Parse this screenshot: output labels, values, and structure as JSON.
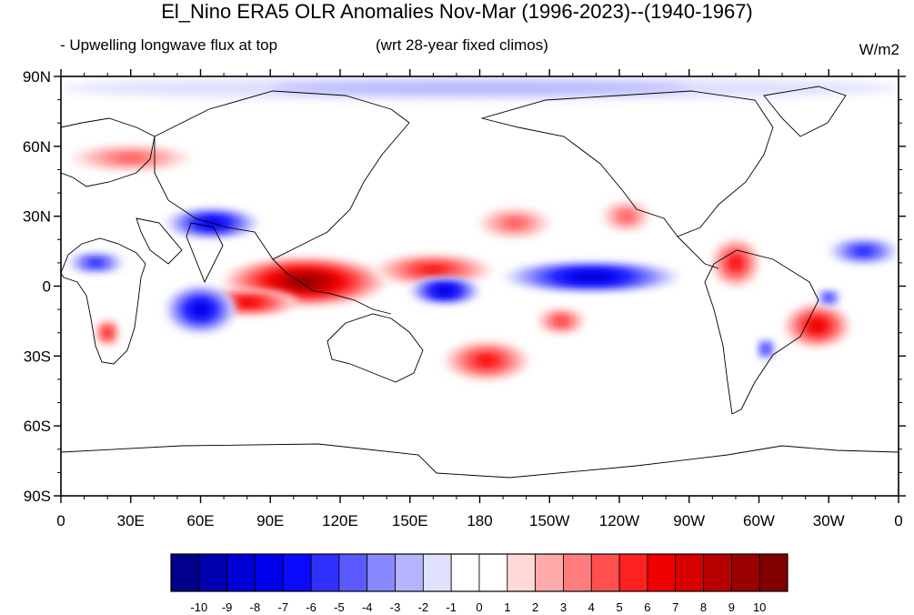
{
  "title": "El_Nino ERA5 OLR Anomalies Nov-Mar (1996-2023)--(1940-1967)",
  "subtitle_left": "- Upwelling longwave flux at top",
  "subtitle_center": "(wrt 28-year fixed climos)",
  "units": "W/m2",
  "map": {
    "projection": "cylindrical-equidistant",
    "lon_range": [
      0,
      360
    ],
    "lat_range": [
      -90,
      90
    ],
    "lat_ticks": [
      {
        "lat": 90,
        "label": "90N"
      },
      {
        "lat": 60,
        "label": "60N"
      },
      {
        "lat": 30,
        "label": "30N"
      },
      {
        "lat": 0,
        "label": "0"
      },
      {
        "lat": -30,
        "label": "30S"
      },
      {
        "lat": -60,
        "label": "60S"
      },
      {
        "lat": -90,
        "label": "90S"
      }
    ],
    "lon_ticks": [
      {
        "lon": 0,
        "label": "0"
      },
      {
        "lon": 30,
        "label": "30E"
      },
      {
        "lon": 60,
        "label": "60E"
      },
      {
        "lon": 90,
        "label": "90E"
      },
      {
        "lon": 120,
        "label": "120E"
      },
      {
        "lon": 150,
        "label": "150E"
      },
      {
        "lon": 180,
        "label": "180"
      },
      {
        "lon": 210,
        "label": "150W"
      },
      {
        "lon": 240,
        "label": "120W"
      },
      {
        "lon": 270,
        "label": "90W"
      },
      {
        "lon": 300,
        "label": "60W"
      },
      {
        "lon": 330,
        "label": "30W"
      },
      {
        "lon": 360,
        "label": "0"
      }
    ],
    "anomaly_features": [
      {
        "name": "maritime-continent-positive",
        "lon": 105,
        "lat": 2,
        "rx": 35,
        "ry": 10,
        "value": 10
      },
      {
        "name": "indian-ocean-south-positive",
        "lon": 80,
        "lat": -7,
        "rx": 22,
        "ry": 5,
        "value": 7
      },
      {
        "name": "west-pacific-north-positive",
        "lon": 160,
        "lat": 7,
        "rx": 25,
        "ry": 6,
        "value": 6
      },
      {
        "name": "south-pacific-convergence-positive",
        "lon": 183,
        "lat": -32,
        "rx": 18,
        "ry": 8,
        "value": 6
      },
      {
        "name": "central-pacific-south-positive",
        "lon": 215,
        "lat": -15,
        "rx": 10,
        "ry": 5,
        "value": 5
      },
      {
        "name": "north-pacific-30n-positive",
        "lon": 195,
        "lat": 27,
        "rx": 15,
        "ry": 6,
        "value": 4
      },
      {
        "name": "north-america-30n-positive",
        "lon": 243,
        "lat": 30,
        "rx": 10,
        "ry": 6,
        "value": 4
      },
      {
        "name": "northern-south-america-positive",
        "lon": 290,
        "lat": 10,
        "rx": 10,
        "ry": 10,
        "value": 6
      },
      {
        "name": "brazil-positive",
        "lon": 325,
        "lat": -17,
        "rx": 14,
        "ry": 9,
        "value": 7
      },
      {
        "name": "southern-africa-positive",
        "lon": 20,
        "lat": -20,
        "rx": 5,
        "ry": 5,
        "value": 6
      },
      {
        "name": "europe-60n-positive",
        "lon": 30,
        "lat": 55,
        "rx": 25,
        "ry": 5,
        "value": 4
      },
      {
        "name": "tropical-central-east-pacific-negative",
        "lon": 228,
        "lat": 4,
        "rx": 38,
        "ry": 6,
        "value": -9
      },
      {
        "name": "southwest-pacific-negative",
        "lon": 165,
        "lat": -2,
        "rx": 15,
        "ry": 5,
        "value": -9
      },
      {
        "name": "indian-ocean-west-negative",
        "lon": 60,
        "lat": -10,
        "rx": 15,
        "ry": 10,
        "value": -8
      },
      {
        "name": "arabia-india-30n-negative",
        "lon": 65,
        "lat": 27,
        "rx": 20,
        "ry": 6,
        "value": -8
      },
      {
        "name": "africa-10n-negative",
        "lon": 15,
        "lat": 10,
        "rx": 12,
        "ry": 4,
        "value": -6
      },
      {
        "name": "tropical-atlantic-15n-negative",
        "lon": 345,
        "lat": 15,
        "rx": 15,
        "ry": 5,
        "value": -6
      },
      {
        "name": "south-atlantic-negative",
        "lon": 330,
        "lat": -5,
        "rx": 5,
        "ry": 3,
        "value": -6
      },
      {
        "name": "south-america-30s-negative",
        "lon": 303,
        "lat": -27,
        "rx": 4,
        "ry": 4,
        "value": -6
      },
      {
        "name": "arctic-negative",
        "lon": 180,
        "lat": 85,
        "rx": 180,
        "ry": 5,
        "value": -2
      }
    ]
  },
  "colorbar": {
    "levels": [
      "-10",
      "-9",
      "-8",
      "-7",
      "-6",
      "-5",
      "-4",
      "-3",
      "-2",
      "-1",
      "0",
      "1",
      "2",
      "3",
      "4",
      "5",
      "6",
      "7",
      "8",
      "9",
      "10"
    ],
    "colors": [
      "#00008a",
      "#0000b0",
      "#0000d6",
      "#0000ef",
      "#0a0aff",
      "#3030ff",
      "#5a5aff",
      "#8888ff",
      "#b4b4ff",
      "#e0e0ff",
      "#ffffff",
      "#ffffff",
      "#ffd8d8",
      "#ffaaaa",
      "#ff7d7d",
      "#ff5050",
      "#ff2020",
      "#f00000",
      "#d80000",
      "#b80000",
      "#9a0000",
      "#800000"
    ]
  }
}
